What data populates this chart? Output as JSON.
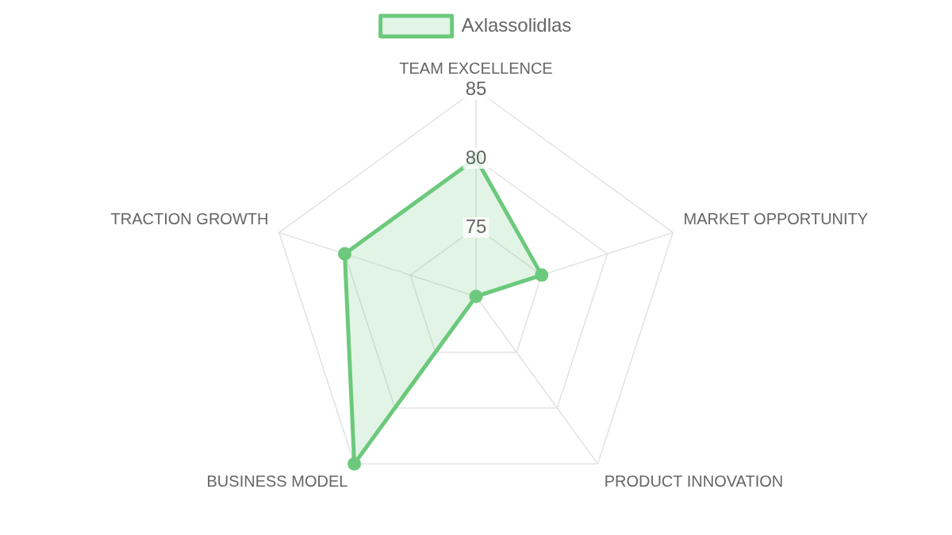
{
  "chart_data": {
    "type": "radar",
    "categories": [
      "TEAM EXCELLENCE",
      "MARKET OPPORTUNITY",
      "PRODUCT INNOVATION",
      "BUSINESS MODEL",
      "TRACTION GROWTH"
    ],
    "series": [
      {
        "name": "Axlassolidlas",
        "color": "#6cc97c",
        "values": [
          80,
          75,
          70,
          85,
          80
        ]
      }
    ],
    "ylim": [
      70,
      85
    ],
    "yticks": [
      75,
      80,
      85
    ],
    "grid": true,
    "legend": "top",
    "marker": "circle",
    "line_style": "solid"
  }
}
